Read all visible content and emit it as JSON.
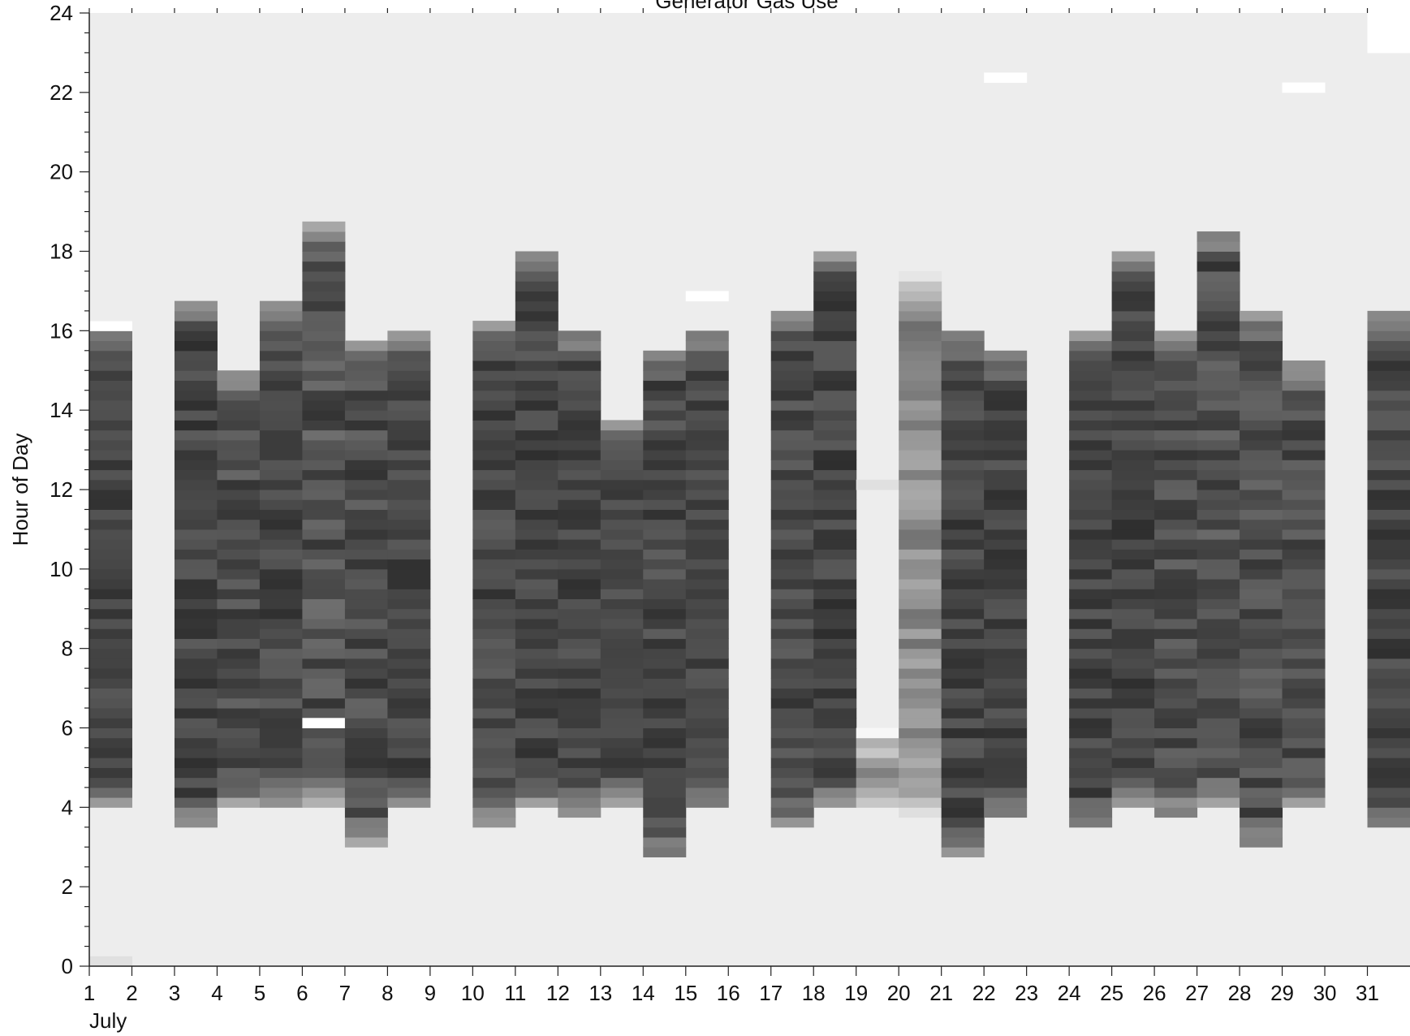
{
  "chart_data": {
    "type": "heatmap",
    "title": "Generator Gas Use",
    "ylabel": "Hour of Day",
    "xlabel": "",
    "month_label": "July",
    "x_tick_labels": [
      "1",
      "2",
      "3",
      "4",
      "5",
      "6",
      "7",
      "8",
      "9",
      "10",
      "11",
      "12",
      "13",
      "14",
      "15",
      "16",
      "17",
      "18",
      "19",
      "20",
      "21",
      "22",
      "23",
      "24",
      "25",
      "26",
      "27",
      "28",
      "29",
      "30",
      "31"
    ],
    "y_tick_labels": [
      "0",
      "2",
      "4",
      "6",
      "8",
      "10",
      "12",
      "14",
      "16",
      "18",
      "20",
      "22",
      "24"
    ],
    "xlim": [
      1,
      32
    ],
    "ylim": [
      0,
      24
    ],
    "grid": false,
    "colors": {
      "background": "#ededed",
      "scale_low": "#222222",
      "scale_high": "#ffffff"
    },
    "value_scale": "gray level 0 (dark) to 1 (light)",
    "days": [
      {
        "day": 1,
        "start": 4.0,
        "end": 16.2,
        "mean": 0.27,
        "spread": 0.08,
        "seed": 11,
        "extras": [
          {
            "start": 0.0,
            "end": 0.25,
            "value": 0.88
          },
          {
            "start": 16.0,
            "end": 16.25,
            "value": 1.0
          }
        ]
      },
      {
        "day": 2,
        "start": null,
        "end": null,
        "mean": null,
        "spread": null,
        "seed": 0,
        "extras": []
      },
      {
        "day": 3,
        "start": 3.5,
        "end": 16.75,
        "mean": 0.27,
        "spread": 0.09,
        "seed": 13,
        "extras": []
      },
      {
        "day": 4,
        "start": 4.0,
        "end": 15.0,
        "mean": 0.3,
        "spread": 0.1,
        "seed": 17,
        "extras": []
      },
      {
        "day": 5,
        "start": 4.0,
        "end": 16.75,
        "mean": 0.28,
        "spread": 0.09,
        "seed": 19,
        "extras": []
      },
      {
        "day": 6,
        "start": 4.0,
        "end": 18.75,
        "mean": 0.32,
        "spread": 0.12,
        "seed": 23,
        "extras": [
          {
            "start": 6.0,
            "end": 6.25,
            "value": 1.0
          }
        ]
      },
      {
        "day": 7,
        "start": 3.0,
        "end": 15.75,
        "mean": 0.3,
        "spread": 0.1,
        "seed": 29,
        "extras": []
      },
      {
        "day": 8,
        "start": 4.0,
        "end": 16.0,
        "mean": 0.27,
        "spread": 0.08,
        "seed": 31,
        "extras": []
      },
      {
        "day": 9,
        "start": null,
        "end": null,
        "mean": null,
        "spread": null,
        "seed": 0,
        "extras": []
      },
      {
        "day": 10,
        "start": 3.5,
        "end": 16.25,
        "mean": 0.28,
        "spread": 0.09,
        "seed": 37,
        "extras": []
      },
      {
        "day": 11,
        "start": 4.0,
        "end": 18.0,
        "mean": 0.27,
        "spread": 0.09,
        "seed": 41,
        "extras": []
      },
      {
        "day": 12,
        "start": 3.75,
        "end": 16.0,
        "mean": 0.27,
        "spread": 0.08,
        "seed": 43,
        "extras": []
      },
      {
        "day": 13,
        "start": 4.0,
        "end": 13.75,
        "mean": 0.28,
        "spread": 0.08,
        "seed": 47,
        "extras": []
      },
      {
        "day": 14,
        "start": 2.75,
        "end": 15.5,
        "mean": 0.28,
        "spread": 0.09,
        "seed": 53,
        "extras": []
      },
      {
        "day": 15,
        "start": 4.0,
        "end": 16.0,
        "mean": 0.28,
        "spread": 0.08,
        "seed": 59,
        "extras": [
          {
            "start": 16.75,
            "end": 17.0,
            "value": 1.0
          }
        ]
      },
      {
        "day": 16,
        "start": null,
        "end": null,
        "mean": null,
        "spread": null,
        "seed": 0,
        "extras": []
      },
      {
        "day": 17,
        "start": 3.5,
        "end": 16.5,
        "mean": 0.28,
        "spread": 0.09,
        "seed": 61,
        "extras": []
      },
      {
        "day": 18,
        "start": 4.0,
        "end": 18.0,
        "mean": 0.27,
        "spread": 0.09,
        "seed": 67,
        "extras": []
      },
      {
        "day": 19,
        "start": 4.0,
        "end": 6.0,
        "mean": 0.6,
        "spread": 0.1,
        "seed": 71,
        "extras": [
          {
            "start": 12.0,
            "end": 12.25,
            "value": 0.88
          }
        ]
      },
      {
        "day": 20,
        "start": 3.75,
        "end": 17.5,
        "mean": 0.55,
        "spread": 0.12,
        "seed": 73,
        "extras": []
      },
      {
        "day": 21,
        "start": 2.75,
        "end": 16.0,
        "mean": 0.27,
        "spread": 0.09,
        "seed": 79,
        "extras": []
      },
      {
        "day": 22,
        "start": 3.75,
        "end": 15.5,
        "mean": 0.27,
        "spread": 0.08,
        "seed": 83,
        "extras": [
          {
            "start": 22.25,
            "end": 22.5,
            "value": 1.0
          }
        ]
      },
      {
        "day": 23,
        "start": null,
        "end": null,
        "mean": null,
        "spread": null,
        "seed": 0,
        "extras": []
      },
      {
        "day": 24,
        "start": 3.5,
        "end": 16.0,
        "mean": 0.27,
        "spread": 0.08,
        "seed": 89,
        "extras": []
      },
      {
        "day": 25,
        "start": 4.0,
        "end": 18.0,
        "mean": 0.27,
        "spread": 0.09,
        "seed": 97,
        "extras": []
      },
      {
        "day": 26,
        "start": 3.75,
        "end": 16.0,
        "mean": 0.3,
        "spread": 0.1,
        "seed": 101,
        "extras": []
      },
      {
        "day": 27,
        "start": 4.0,
        "end": 18.5,
        "mean": 0.3,
        "spread": 0.11,
        "seed": 103,
        "extras": []
      },
      {
        "day": 28,
        "start": 3.0,
        "end": 16.5,
        "mean": 0.3,
        "spread": 0.1,
        "seed": 107,
        "extras": []
      },
      {
        "day": 29,
        "start": 4.0,
        "end": 15.25,
        "mean": 0.3,
        "spread": 0.09,
        "seed": 109,
        "extras": [
          {
            "start": 22.0,
            "end": 22.25,
            "value": 1.0
          }
        ]
      },
      {
        "day": 30,
        "start": null,
        "end": null,
        "mean": null,
        "spread": null,
        "seed": 0,
        "extras": []
      },
      {
        "day": 31,
        "start": 3.5,
        "end": 16.5,
        "mean": 0.27,
        "spread": 0.09,
        "seed": 113,
        "extras": [
          {
            "start": 23.0,
            "end": 24.0,
            "value": 1.0
          }
        ]
      }
    ]
  }
}
